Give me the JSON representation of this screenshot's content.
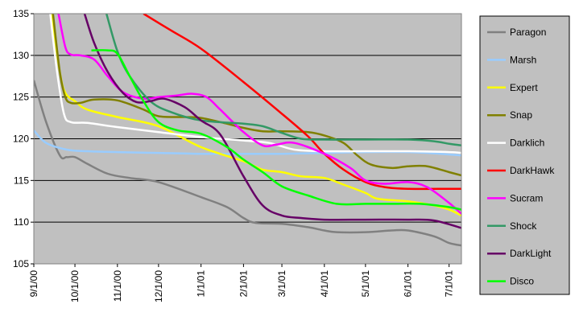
{
  "chart_data": {
    "type": "line",
    "title": "",
    "xlabel": "",
    "ylabel": "",
    "ylim": [
      105,
      135
    ],
    "yticks": [
      105,
      110,
      115,
      120,
      125,
      130,
      135
    ],
    "x_start": "9/1/00",
    "x_end": "7/10/01",
    "x_ticks": [
      "9/1/00",
      "10/1/00",
      "11/1/00",
      "12/1/00",
      "1/1/01",
      "2/1/01",
      "3/1/01",
      "4/1/01",
      "5/1/01",
      "6/1/01",
      "7/1/01"
    ],
    "grid": "horizontal",
    "legend_position": "right",
    "plot_background": "#c0c0c0",
    "series": [
      {
        "name": "Paragon",
        "color": "#808080",
        "points": [
          [
            "9/1/00",
            127
          ],
          [
            "9/10/00",
            122
          ],
          [
            "9/20/00",
            118
          ],
          [
            "9/25/00",
            117.8
          ],
          [
            "10/1/00",
            117.8
          ],
          [
            "10/10/00",
            117
          ],
          [
            "10/25/00",
            115.8
          ],
          [
            "11/10/00",
            115.3
          ],
          [
            "12/1/00",
            114.8
          ],
          [
            "1/1/01",
            113
          ],
          [
            "1/20/01",
            111.8
          ],
          [
            "2/1/01",
            110.5
          ],
          [
            "2/10/01",
            109.9
          ],
          [
            "3/1/01",
            109.8
          ],
          [
            "3/20/01",
            109.4
          ],
          [
            "4/1/01",
            109
          ],
          [
            "4/10/01",
            108.8
          ],
          [
            "5/1/01",
            108.8
          ],
          [
            "5/20/01",
            109
          ],
          [
            "6/1/01",
            109
          ],
          [
            "6/20/01",
            108.3
          ],
          [
            "7/1/01",
            107.5
          ],
          [
            "7/10/01",
            107.2
          ]
        ]
      },
      {
        "name": "Marsh",
        "color": "#99ccff",
        "points": [
          [
            "9/1/00",
            121
          ],
          [
            "9/10/00",
            119.5
          ],
          [
            "9/25/00",
            118.7
          ],
          [
            "10/10/00",
            118.5
          ],
          [
            "11/1/00",
            118.4
          ],
          [
            "12/1/00",
            118.3
          ],
          [
            "1/1/01",
            118.2
          ],
          [
            "2/1/01",
            118.2
          ],
          [
            "3/1/01",
            118.2
          ],
          [
            "4/1/01",
            118.3
          ],
          [
            "5/1/01",
            118.4
          ],
          [
            "6/1/01",
            118.4
          ],
          [
            "6/25/01",
            118.2
          ],
          [
            "7/10/01",
            118
          ]
        ]
      },
      {
        "name": "Expert",
        "color": "#ffff00",
        "points": [
          [
            "9/14/00",
            135
          ],
          [
            "9/20/00",
            128
          ],
          [
            "9/24/00",
            125.5
          ],
          [
            "10/1/00",
            124.5
          ],
          [
            "10/10/00",
            123.5
          ],
          [
            "11/1/00",
            122.6
          ],
          [
            "12/1/00",
            121.5
          ],
          [
            "1/1/01",
            119
          ],
          [
            "2/1/01",
            117.3
          ],
          [
            "2/15/01",
            116.3
          ],
          [
            "3/1/01",
            116
          ],
          [
            "3/15/01",
            115.5
          ],
          [
            "4/1/01",
            115.3
          ],
          [
            "4/15/01",
            114.5
          ],
          [
            "5/1/01",
            113.5
          ],
          [
            "5/10/01",
            112.8
          ],
          [
            "6/1/01",
            112.5
          ],
          [
            "6/20/01",
            112
          ],
          [
            "7/1/01",
            111.5
          ],
          [
            "7/10/01",
            110.8
          ]
        ]
      },
      {
        "name": "Snap",
        "color": "#808000",
        "points": [
          [
            "9/15/00",
            135
          ],
          [
            "9/20/00",
            128
          ],
          [
            "9/24/00",
            125
          ],
          [
            "9/28/00",
            124.3
          ],
          [
            "10/5/00",
            124.3
          ],
          [
            "10/15/00",
            124.7
          ],
          [
            "11/1/00",
            124.6
          ],
          [
            "11/20/00",
            123.5
          ],
          [
            "12/1/00",
            122.7
          ],
          [
            "12/20/00",
            122.6
          ],
          [
            "1/1/01",
            122.5
          ],
          [
            "1/20/01",
            121.8
          ],
          [
            "2/1/01",
            121.3
          ],
          [
            "2/15/01",
            120.9
          ],
          [
            "3/1/01",
            120.9
          ],
          [
            "3/20/01",
            120.8
          ],
          [
            "4/1/01",
            120.4
          ],
          [
            "4/15/01",
            119.5
          ],
          [
            "4/25/01",
            118
          ],
          [
            "5/5/01",
            116.9
          ],
          [
            "5/20/01",
            116.5
          ],
          [
            "6/1/01",
            116.7
          ],
          [
            "6/15/01",
            116.7
          ],
          [
            "7/1/01",
            116
          ],
          [
            "7/10/01",
            115.6
          ]
        ]
      },
      {
        "name": "Darklich",
        "color": "#ffffff",
        "points": [
          [
            "9/13/00",
            135
          ],
          [
            "9/18/00",
            128
          ],
          [
            "9/23/00",
            123
          ],
          [
            "9/28/00",
            122
          ],
          [
            "10/10/00",
            121.9
          ],
          [
            "11/1/00",
            121.4
          ],
          [
            "12/1/00",
            120.8
          ],
          [
            "1/1/01",
            120.2
          ],
          [
            "2/1/01",
            119.8
          ],
          [
            "2/20/01",
            119.5
          ],
          [
            "3/10/01",
            118.7
          ],
          [
            "4/1/01",
            118.5
          ],
          [
            "5/1/01",
            118.5
          ],
          [
            "6/1/01",
            118.5
          ],
          [
            "7/1/01",
            118.4
          ],
          [
            "7/10/01",
            118.3
          ]
        ]
      },
      {
        "name": "DarkHawk",
        "color": "#ff0000",
        "points": [
          [
            "11/20/00",
            135
          ],
          [
            "12/10/00",
            133
          ],
          [
            "1/1/01",
            130.8
          ],
          [
            "2/1/01",
            126.8
          ],
          [
            "3/1/01",
            123
          ],
          [
            "3/20/01",
            120.3
          ],
          [
            "4/1/01",
            118.2
          ],
          [
            "4/15/01",
            116.3
          ],
          [
            "5/1/01",
            114.8
          ],
          [
            "5/15/01",
            114.2
          ],
          [
            "6/1/01",
            114
          ],
          [
            "7/1/01",
            114
          ],
          [
            "7/10/01",
            114
          ]
        ]
      },
      {
        "name": "Sucram",
        "color": "#ff00ff",
        "points": [
          [
            "9/19/00",
            135
          ],
          [
            "9/24/00",
            131
          ],
          [
            "9/28/00",
            130.1
          ],
          [
            "10/5/00",
            130
          ],
          [
            "10/15/00",
            129.5
          ],
          [
            "10/25/00",
            127.5
          ],
          [
            "11/5/00",
            125.6
          ],
          [
            "11/20/00",
            124.8
          ],
          [
            "12/1/00",
            125
          ],
          [
            "12/15/00",
            125.2
          ],
          [
            "12/25/00",
            125.4
          ],
          [
            "1/5/01",
            125
          ],
          [
            "1/15/01",
            123.5
          ],
          [
            "2/1/01",
            120.8
          ],
          [
            "2/15/01",
            119.2
          ],
          [
            "2/25/01",
            119.3
          ],
          [
            "3/10/01",
            119.5
          ],
          [
            "4/1/01",
            118.2
          ],
          [
            "4/20/01",
            116.5
          ],
          [
            "5/1/01",
            115
          ],
          [
            "5/15/01",
            114.6
          ],
          [
            "6/1/01",
            114.8
          ],
          [
            "6/15/01",
            114.2
          ],
          [
            "7/1/01",
            112.3
          ],
          [
            "7/10/01",
            111
          ]
        ]
      },
      {
        "name": "Shock",
        "color": "#339966",
        "points": [
          [
            "10/24/00",
            135
          ],
          [
            "11/1/00",
            130.5
          ],
          [
            "11/10/00",
            127.5
          ],
          [
            "11/25/00",
            124.5
          ],
          [
            "12/10/00",
            123.2
          ],
          [
            "1/1/01",
            122.2
          ],
          [
            "2/1/01",
            121.8
          ],
          [
            "2/15/01",
            121.5
          ],
          [
            "3/1/01",
            120.7
          ],
          [
            "3/15/01",
            120
          ],
          [
            "4/1/01",
            119.9
          ],
          [
            "5/1/01",
            119.9
          ],
          [
            "6/1/01",
            119.9
          ],
          [
            "6/20/01",
            119.7
          ],
          [
            "7/1/01",
            119.4
          ],
          [
            "7/10/01",
            119.2
          ]
        ]
      },
      {
        "name": "DarkLight",
        "color": "#660066",
        "points": [
          [
            "10/8/00",
            135
          ],
          [
            "10/15/00",
            131.5
          ],
          [
            "10/25/00",
            128
          ],
          [
            "11/5/00",
            125.5
          ],
          [
            "11/15/00",
            124.4
          ],
          [
            "11/25/00",
            124.5
          ],
          [
            "12/5/00",
            124.8
          ],
          [
            "12/20/00",
            123.8
          ],
          [
            "1/1/01",
            122.2
          ],
          [
            "1/15/01",
            120.5
          ],
          [
            "2/1/01",
            115.5
          ],
          [
            "2/15/01",
            112
          ],
          [
            "3/1/01",
            110.8
          ],
          [
            "3/15/01",
            110.5
          ],
          [
            "4/1/01",
            110.3
          ],
          [
            "5/1/01",
            110.3
          ],
          [
            "6/1/01",
            110.3
          ],
          [
            "6/20/01",
            110.2
          ],
          [
            "7/10/01",
            109.3
          ]
        ]
      },
      {
        "name": "Disco",
        "color": "#00ff00",
        "points": [
          [
            "10/13/00",
            130.6
          ],
          [
            "10/25/00",
            130.6
          ],
          [
            "11/1/00",
            130.2
          ],
          [
            "11/10/00",
            127.5
          ],
          [
            "11/20/00",
            124.5
          ],
          [
            "12/1/00",
            122
          ],
          [
            "12/15/00",
            121
          ],
          [
            "1/1/01",
            120.6
          ],
          [
            "1/20/01",
            119
          ],
          [
            "2/1/01",
            117.5
          ],
          [
            "2/15/01",
            116
          ],
          [
            "3/1/01",
            114.3
          ],
          [
            "3/20/01",
            113.2
          ],
          [
            "4/10/01",
            112.2
          ],
          [
            "5/1/01",
            112.2
          ],
          [
            "5/20/01",
            112.2
          ],
          [
            "6/10/01",
            112.2
          ],
          [
            "7/1/01",
            111.8
          ],
          [
            "7/10/01",
            111.5
          ]
        ]
      }
    ]
  }
}
